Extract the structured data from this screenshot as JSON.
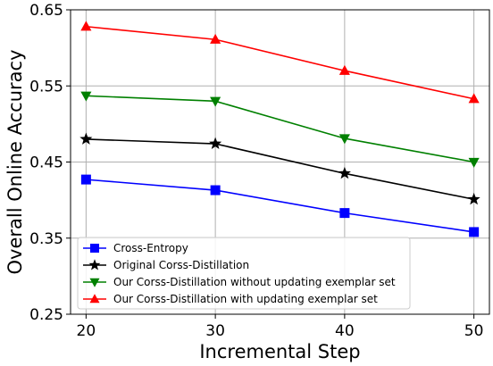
{
  "chart_data": {
    "type": "line",
    "xlabel": "Incremental Step",
    "ylabel": "Overall Online Accuracy",
    "x": [
      20,
      30,
      40,
      50
    ],
    "xlim": [
      18.8,
      51.2
    ],
    "ylim": [
      0.25,
      0.65
    ],
    "xticks": [
      20,
      30,
      40,
      50
    ],
    "xtick_labels": [
      "20",
      "30",
      "40",
      "50"
    ],
    "yticks": [
      0.25,
      0.35,
      0.45,
      0.55,
      0.65
    ],
    "ytick_labels": [
      "0.25",
      "0.35",
      "0.45",
      "0.55",
      "0.65"
    ],
    "grid": true,
    "legend_position": "lower-left",
    "series": [
      {
        "name": "Cross-Entropy",
        "color": "#0000ff",
        "marker": "square",
        "values": [
          0.427,
          0.413,
          0.383,
          0.358
        ]
      },
      {
        "name": "Original Corss-Distillation",
        "color": "#000000",
        "marker": "star",
        "values": [
          0.48,
          0.474,
          0.435,
          0.401
        ]
      },
      {
        "name": "Our Corss-Distillation without updating exemplar set",
        "color": "#008000",
        "marker": "triangle-down",
        "values": [
          0.537,
          0.53,
          0.481,
          0.45
        ]
      },
      {
        "name": "Our Corss-Distillation with updating exemplar set",
        "color": "#ff0000",
        "marker": "triangle-up",
        "values": [
          0.628,
          0.611,
          0.57,
          0.533
        ]
      }
    ]
  }
}
